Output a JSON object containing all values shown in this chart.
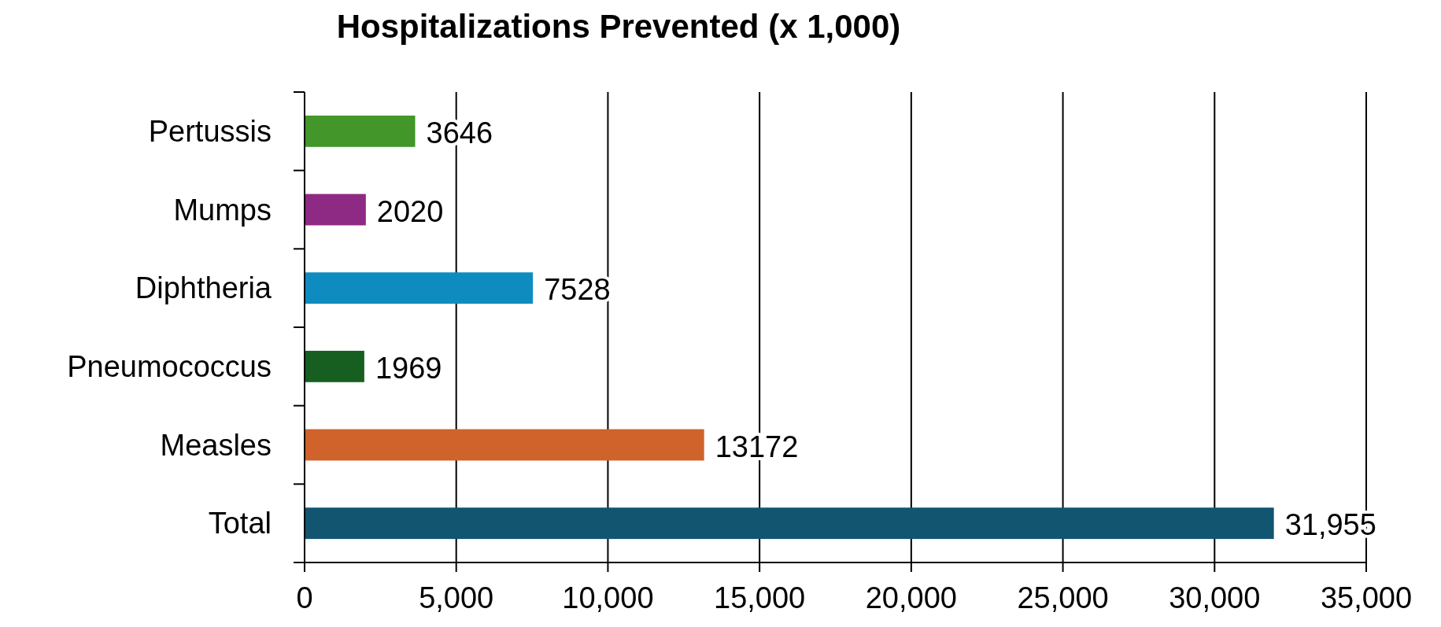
{
  "chart_data": {
    "type": "bar",
    "orientation": "horizontal",
    "title": "Hospitalizations Prevented (x 1,000)",
    "categories": [
      "Pertussis",
      "Mumps",
      "Diphtheria",
      "Pneumococcus",
      "Measles",
      "Total"
    ],
    "values": [
      3646,
      2020,
      7528,
      1969,
      13172,
      31955
    ],
    "colors": [
      "#43962a",
      "#8e2a84",
      "#0e8cc0",
      "#165f20",
      "#d0622c",
      "#125570"
    ],
    "value_labels": [
      "3646",
      "2020",
      "7528",
      "1969",
      "13172",
      "31,955"
    ],
    "xlim": [
      0,
      35000
    ],
    "xticks": [
      {
        "value": 0,
        "label": "0"
      },
      {
        "value": 5000,
        "label": "5,000"
      },
      {
        "value": 10000,
        "label": "10,000"
      },
      {
        "value": 15000,
        "label": "15,000"
      },
      {
        "value": 20000,
        "label": "20,000"
      },
      {
        "value": 25000,
        "label": "25,000"
      },
      {
        "value": 30000,
        "label": "30,000"
      },
      {
        "value": 35000,
        "label": "35,000"
      }
    ],
    "grid": "x"
  }
}
